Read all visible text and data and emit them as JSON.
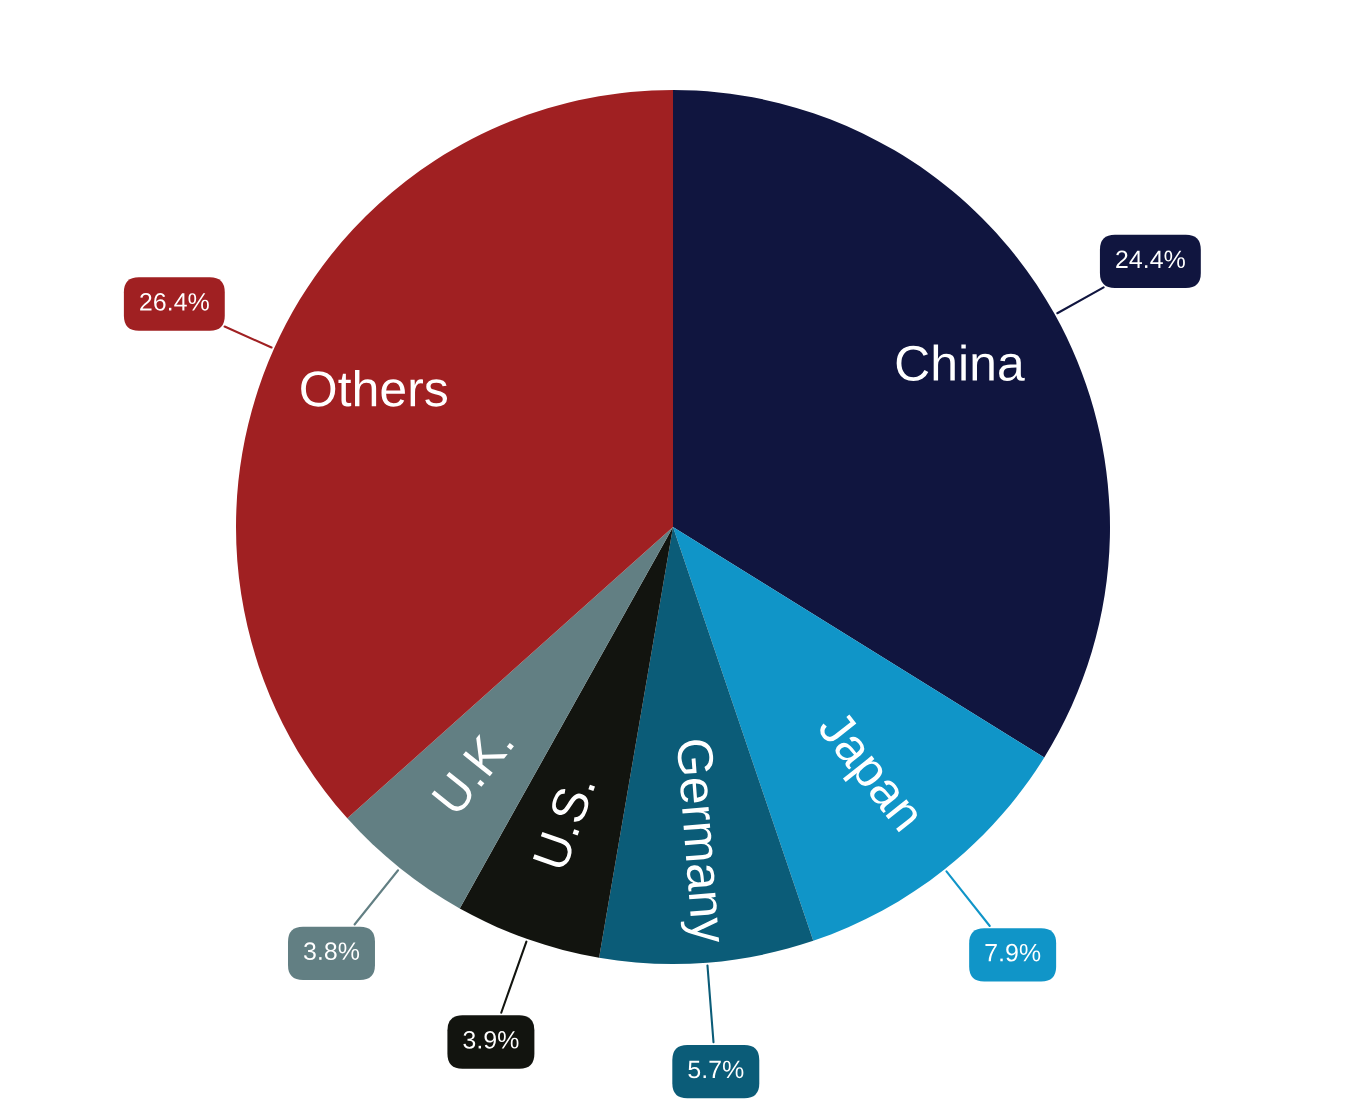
{
  "chart_data": {
    "type": "pie",
    "categories": [
      "China",
      "Japan",
      "Germany",
      "U.S.",
      "U.K.",
      "Others"
    ],
    "values": [
      24.4,
      7.9,
      5.7,
      3.9,
      3.8,
      26.4
    ],
    "value_labels": [
      "24.4%",
      "7.9%",
      "5.7%",
      "3.9%",
      "3.8%",
      "26.4%"
    ],
    "colors": [
      "#10153f",
      "#1095c8",
      "#0b5c78",
      "#12140f",
      "#627f83",
      "#a02022"
    ],
    "legend": false
  }
}
